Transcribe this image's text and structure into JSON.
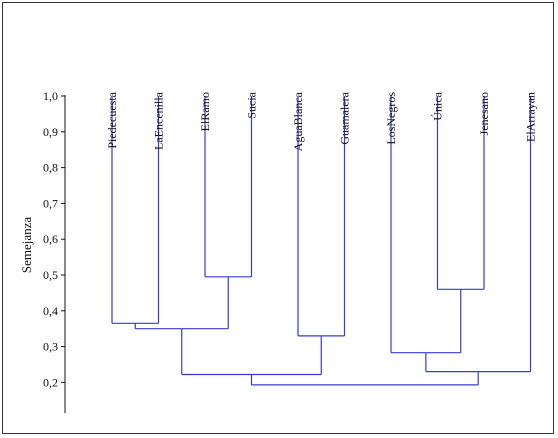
{
  "chart_data": {
    "type": "dendrogram",
    "ylabel": "Semejanza",
    "ylim": [
      0.1,
      1.0
    ],
    "yticks": [
      "1,0",
      "0,9",
      "0,8",
      "0,7",
      "0,6",
      "0,5",
      "0,4",
      "0,3",
      "0,2"
    ],
    "ytick_values": [
      1.0,
      0.9,
      0.8,
      0.7,
      0.6,
      0.5,
      0.4,
      0.3,
      0.2
    ],
    "leaves": [
      "Piedecuesta",
      "LaEncenilla",
      "ElRamo",
      "Sucia",
      "AguaBlanca",
      "Guamalera",
      "LosNegros",
      "Única",
      "Jenesano",
      "ElArrayan"
    ],
    "merges": [
      {
        "id": "m1",
        "children": [
          "Piedecuesta",
          "LaEncenilla"
        ],
        "similarity": 0.365
      },
      {
        "id": "m2",
        "children": [
          "ElRamo",
          "Sucia"
        ],
        "similarity": 0.495
      },
      {
        "id": "m3",
        "children": [
          "m1",
          "m2"
        ],
        "similarity": 0.35
      },
      {
        "id": "m4",
        "children": [
          "AguaBlanca",
          "Guamalera"
        ],
        "similarity": 0.33
      },
      {
        "id": "m5",
        "children": [
          "m3",
          "m4"
        ],
        "similarity": 0.222
      },
      {
        "id": "m6",
        "children": [
          "Única",
          "Jenesano"
        ],
        "similarity": 0.46
      },
      {
        "id": "m7",
        "children": [
          "LosNegros",
          "m6"
        ],
        "similarity": 0.283
      },
      {
        "id": "m8",
        "children": [
          "m7",
          "ElArrayan"
        ],
        "similarity": 0.23
      },
      {
        "id": "m9",
        "children": [
          "m5",
          "m8"
        ],
        "similarity": 0.193
      }
    ],
    "colors": {
      "branch": "#3a3ad6",
      "axis": "#111111"
    }
  }
}
